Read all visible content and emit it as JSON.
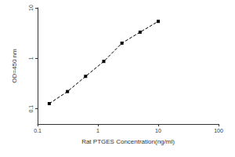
{
  "chart_data": {
    "type": "line",
    "x_label": "Rat PTGES Concentration(ng/ml)",
    "y_label": "OD=450 nm",
    "x": [
      0.156,
      0.313,
      0.625,
      1.25,
      2.5,
      5,
      10
    ],
    "values": [
      0.127,
      0.22,
      0.44,
      0.87,
      2.0,
      3.3,
      5.4
    ],
    "color": "#000000",
    "marker": "square",
    "line_style": "dashed",
    "log": true,
    "grid": false,
    "xlim": [
      0.1,
      100
    ],
    "xticks": [
      0.1,
      1,
      10,
      100
    ],
    "ylim": [
      0.05,
      10
    ],
    "yticks": [
      0.1,
      1,
      10
    ]
  }
}
